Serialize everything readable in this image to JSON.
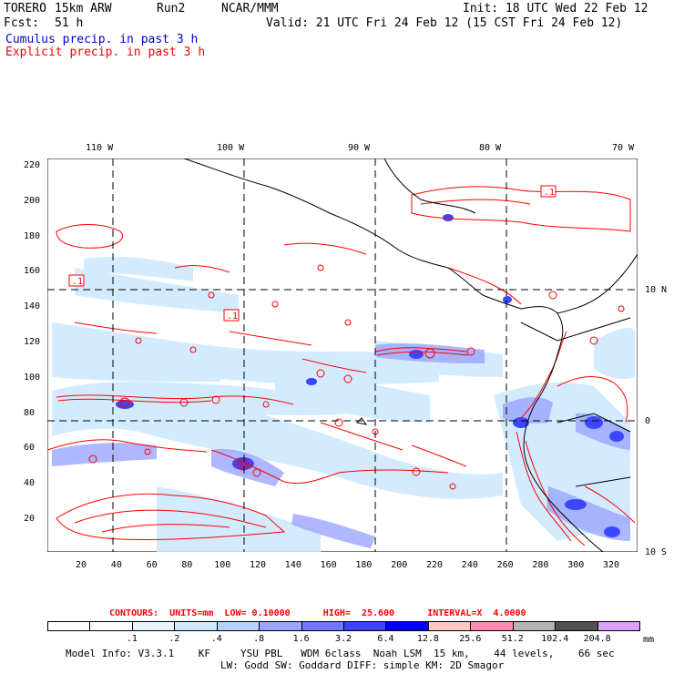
{
  "header": {
    "model": "TORERO",
    "resolution": "15km ARW",
    "run": "Run2",
    "org": "NCAR/MMM",
    "init": "Init: 18 UTC Wed 22 Feb 12",
    "fcst_label": "Fcst:",
    "fcst_value": "51 h",
    "valid": "Valid: 21 UTC Fri 24 Feb 12 (15 CST Fri 24 Feb 12)"
  },
  "legend": {
    "cumulus": "Cumulus precip. in past 3 h",
    "explicit": "Explicit precip. in past 3 h",
    "cumulus_color": "#0000ff",
    "explicit_color": "#ff0000"
  },
  "axes": {
    "top_lon_labels": [
      "110 W",
      "100 W",
      "90 W",
      "80 W",
      "70 W"
    ],
    "right_lat_labels": [
      "10 N",
      "0",
      "10 S"
    ],
    "left_ticks": [
      "220",
      "200",
      "180",
      "160",
      "140",
      "120",
      "100",
      "80",
      "60",
      "40",
      "20"
    ],
    "bottom_ticks": [
      "20",
      "40",
      "60",
      "80",
      "100",
      "120",
      "140",
      "160",
      "180",
      "200",
      "220",
      "240",
      "260",
      "280",
      "300",
      "320"
    ]
  },
  "map_labels": [
    ".1",
    ".1",
    ".1"
  ],
  "contours": {
    "line": "CONTOURS:  UNITS=mm  LOW= 0.10000      HIGH=  25.600      INTERVAL=X  4.0000"
  },
  "colorbar": {
    "labels": [
      ".1",
      ".2",
      ".4",
      ".8",
      "1.6",
      "3.2",
      "6.4",
      "12.8",
      "25.6",
      "51.2",
      "102.4",
      "204.8"
    ],
    "unit": "mm",
    "colors": [
      "#ffffff",
      "#ffffff",
      "#e6f4ff",
      "#cfe9ff",
      "#b4d4ff",
      "#9aa6ff",
      "#7078ff",
      "#3c46ff",
      "#0000ff",
      "#ffc8c8",
      "#ff8cb4",
      "#b4b4b4",
      "#505050",
      "#dca0ff"
    ]
  },
  "footer": {
    "line1": "Model Info: V3.3.1    KF     YSU PBL   WDM 6class  Noah LSM  15 km,    44 levels,    66 sec",
    "line2": "LW: Godd SW: Goddard DIFF: simple KM: 2D Smagor"
  }
}
